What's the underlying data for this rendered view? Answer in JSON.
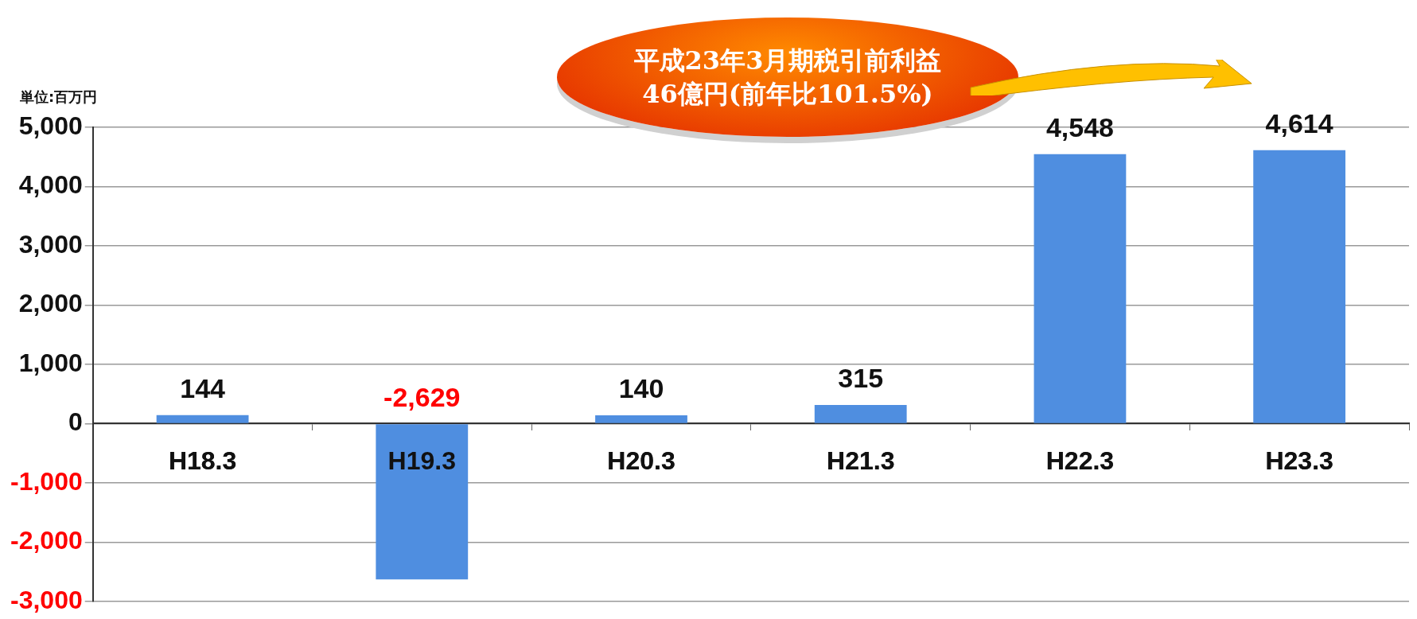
{
  "chart_data": {
    "type": "bar",
    "ylabel": "単位:百万円",
    "categories": [
      "H18.3",
      "H19.3",
      "H20.3",
      "H21.3",
      "H22.3",
      "H23.3"
    ],
    "values": [
      144,
      -2629,
      140,
      315,
      4548,
      4614
    ],
    "value_labels": [
      "144",
      "-2,629",
      "140",
      "315",
      "4,548",
      "4,614"
    ],
    "color": "#4f8ee0",
    "ylim": [
      -3000,
      5000
    ],
    "yticks": [
      {
        "value": -3000,
        "label": "-3,000"
      },
      {
        "value": -2000,
        "label": "-2,000"
      },
      {
        "value": -1000,
        "label": "-1,000"
      },
      0,
      {
        "value": 1000,
        "label": "1,000"
      },
      {
        "value": 2000,
        "label": "2,000"
      },
      {
        "value": 3000,
        "label": "3,000"
      },
      {
        "value": 4000,
        "label": "4,000"
      },
      {
        "value": 5000,
        "label": "5,000"
      }
    ],
    "grid": "y",
    "legend": false,
    "annotations": [
      "平成23年3月期税引前利益\n46億円(前年比101.5%)"
    ]
  }
}
